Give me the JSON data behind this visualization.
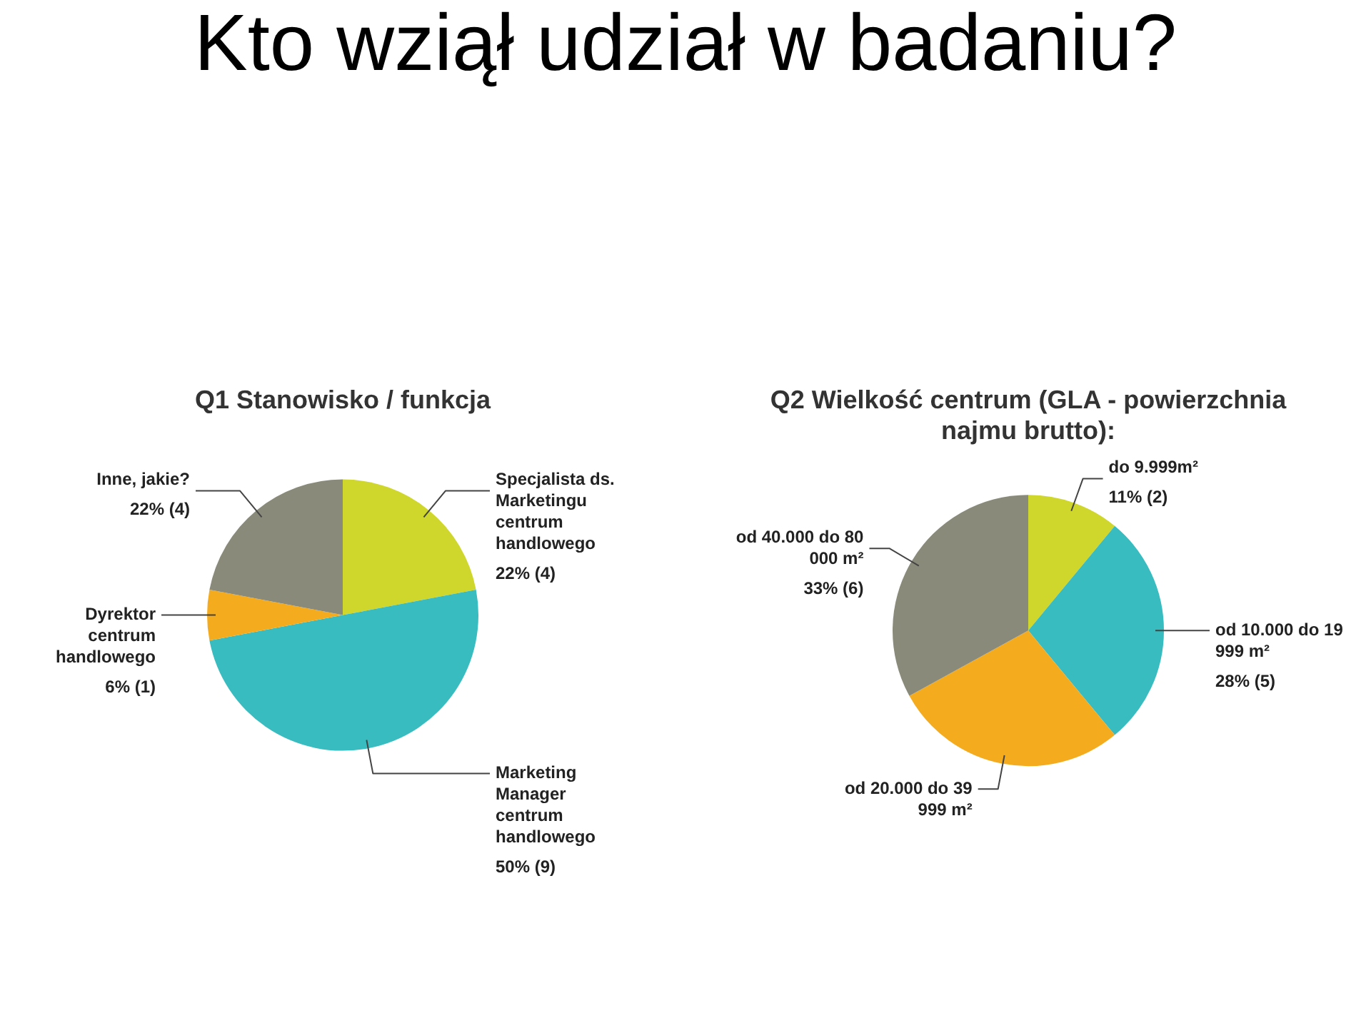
{
  "chart_data": [
    {
      "type": "pie",
      "title": "Q1 Stanowisko / funkcja",
      "annotations": [
        "Kto wziął udział w badaniu?"
      ],
      "categories": [
        "Specjalista ds. Marketingu centrum handlowego",
        "Marketing Manager centrum handlowego",
        "Dyrektor centrum handlowego",
        "Inne, jakie?"
      ],
      "values": [
        22,
        50,
        6,
        22
      ],
      "value_labels": [
        "22% (4)",
        "50% (9)",
        "6% (1)",
        "22% (4)"
      ],
      "colors": [
        "#cfd62c",
        "#38bcc0",
        "#f5ab1e",
        "#8a8a7a"
      ]
    },
    {
      "type": "pie",
      "title": "Q2 Wielkość centrum (GLA - powierzchnia najmu brutto):",
      "categories": [
        "do 9.999m²",
        "od 10.000 do 19 999 m²",
        "od 20.000 do 39 999 m²",
        "od 40.000 do 80 000 m²"
      ],
      "values": [
        11,
        28,
        28,
        33
      ],
      "value_labels": [
        "11% (2)",
        "28% (5)",
        null,
        "33% (6)"
      ],
      "colors": [
        "#cfd62c",
        "#38bcc0",
        "#f5ab1e",
        "#8a8a7a"
      ]
    }
  ]
}
